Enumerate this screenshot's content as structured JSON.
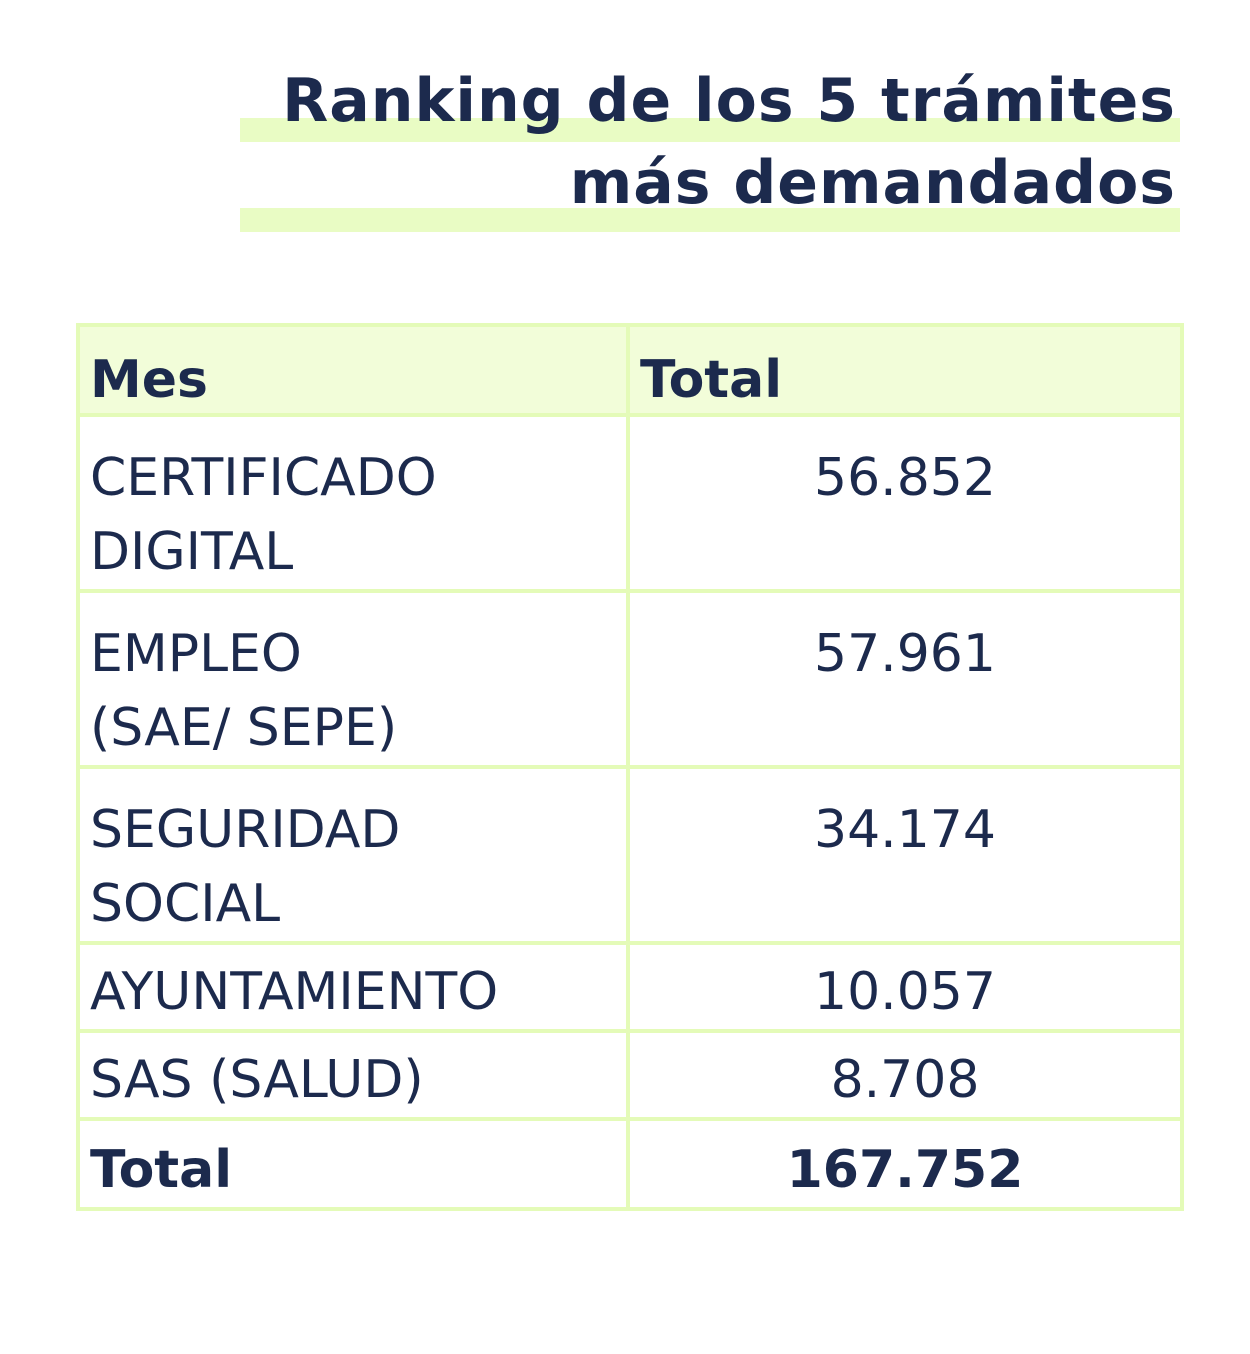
{
  "title": {
    "line1": "Ranking de los 5 trámites",
    "line2": "más demandados"
  },
  "colors": {
    "text": "#1c2a4d",
    "highlight": "#e9fcc4",
    "border": "#e4fbb8",
    "header_bg": "#f2fdd9"
  },
  "chart_data": {
    "type": "table",
    "title": "Ranking de los 5 trámites más demandados",
    "columns": [
      "Mes",
      "Total"
    ],
    "rows": [
      {
        "label_line1": "CERTIFICADO",
        "label_line2": "DIGITAL",
        "value": "56.852"
      },
      {
        "label_line1": "EMPLEO",
        "label_line2": "(SAE/ SEPE)",
        "value": "57.961"
      },
      {
        "label_line1": "SEGURIDAD",
        "label_line2": "SOCIAL",
        "value": "34.174"
      },
      {
        "label_line1": "AYUNTAMIENTO",
        "label_line2": "",
        "value": "10.057"
      },
      {
        "label_line1": "SAS (SALUD)",
        "label_line2": "",
        "value": "8.708"
      }
    ],
    "total": {
      "label": "Total",
      "value": "167.752"
    }
  }
}
